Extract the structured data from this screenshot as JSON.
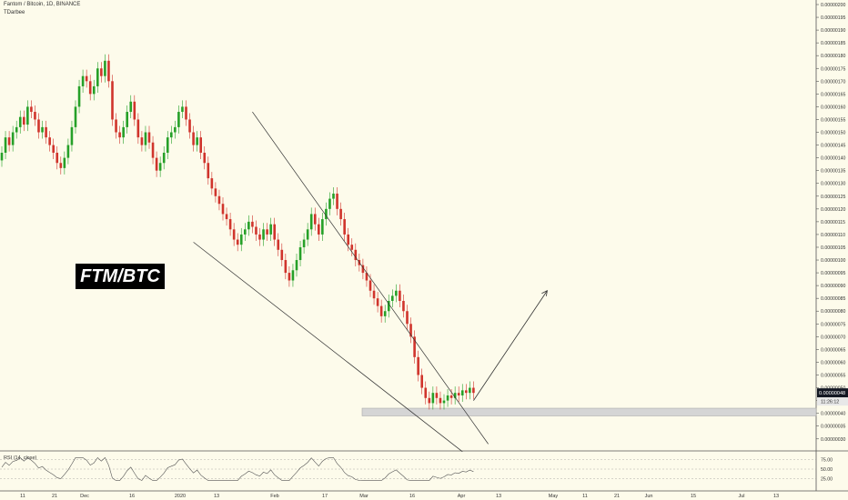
{
  "header": {
    "symbol_line": "Fantom / Bitcoin, 1D, BINANCE",
    "author": "TDarbee"
  },
  "overlay_label": "FTM/BTC",
  "price_badge": {
    "price": "0.00000048",
    "countdown": "11:26:12",
    "color": "#131722"
  },
  "colors": {
    "up": "#26a028",
    "down": "#d0342c",
    "background": "#fdfbeb",
    "line": "#333333",
    "support_zone": "#d5d5d5",
    "rsi_line": "#555555"
  },
  "rsi": {
    "label": "RSI (14, close)",
    "ticks": [
      "75.00",
      "50.00",
      "25.00"
    ],
    "current": 35
  },
  "chart_data": {
    "type": "candlestick",
    "title": "Fantom / Bitcoin, 1D, BINANCE",
    "y_ticks": [
      "0.00000200",
      "0.00000195",
      "0.00000190",
      "0.00000185",
      "0.00000180",
      "0.00000175",
      "0.00000170",
      "0.00000165",
      "0.00000160",
      "0.00000155",
      "0.00000150",
      "0.00000145",
      "0.00000140",
      "0.00000135",
      "0.00000130",
      "0.00000125",
      "0.00000120",
      "0.00000115",
      "0.00000110",
      "0.00000105",
      "0.00000100",
      "0.00000095",
      "0.00000090",
      "0.00000085",
      "0.00000080",
      "0.00000075",
      "0.00000070",
      "0.00000065",
      "0.00000060",
      "0.00000055",
      "0.00000050",
      "0.00000045",
      "0.00000040",
      "0.00000035",
      "0.00000030"
    ],
    "x_ticks": [
      "11",
      "21",
      "Dec",
      "16",
      "2020",
      "13",
      "Feb",
      "17",
      "Mar",
      "16",
      "Apr",
      "13",
      "May",
      "11",
      "21",
      "Jun",
      "15",
      "Jul",
      "13"
    ],
    "ylim": [
      2.6e-07,
      2e-06
    ],
    "closes_x1e8": [
      142,
      148,
      145,
      150,
      152,
      156,
      153,
      160,
      158,
      155,
      150,
      152,
      148,
      145,
      142,
      138,
      136,
      140,
      145,
      152,
      160,
      168,
      172,
      170,
      165,
      168,
      175,
      172,
      178,
      170,
      155,
      150,
      148,
      152,
      158,
      162,
      155,
      148,
      145,
      150,
      146,
      140,
      135,
      138,
      142,
      148,
      150,
      152,
      158,
      160,
      155,
      150,
      145,
      148,
      142,
      138,
      132,
      128,
      125,
      122,
      118,
      116,
      112,
      108,
      106,
      110,
      112,
      115,
      113,
      110,
      108,
      112,
      110,
      114,
      108,
      104,
      100,
      95,
      92,
      96,
      100,
      105,
      108,
      112,
      118,
      114,
      110,
      116,
      120,
      124,
      126,
      120,
      116,
      110,
      106,
      104,
      100,
      98,
      95,
      92,
      88,
      85,
      82,
      78,
      80,
      84,
      86,
      88,
      84,
      80,
      75,
      70,
      62,
      55,
      50,
      46,
      44,
      48,
      46,
      44,
      45,
      47,
      46,
      48,
      47,
      49,
      48,
      50,
      48
    ],
    "support_zone": [
      3.9e-07,
      4.2e-07
    ],
    "wedge_upper": [
      [
        0,
        1.58e-06
      ],
      [
        55,
        1.25e-06
      ],
      [
        123,
        4.1e-07
      ]
    ],
    "wedge_lower": [
      [
        0,
        1.07e-06
      ],
      [
        64,
        9e-07
      ],
      [
        134,
        2.5e-07
      ]
    ],
    "projection": [
      [
        128,
        4.5e-07
      ],
      [
        148,
        8.8e-07
      ]
    ]
  }
}
